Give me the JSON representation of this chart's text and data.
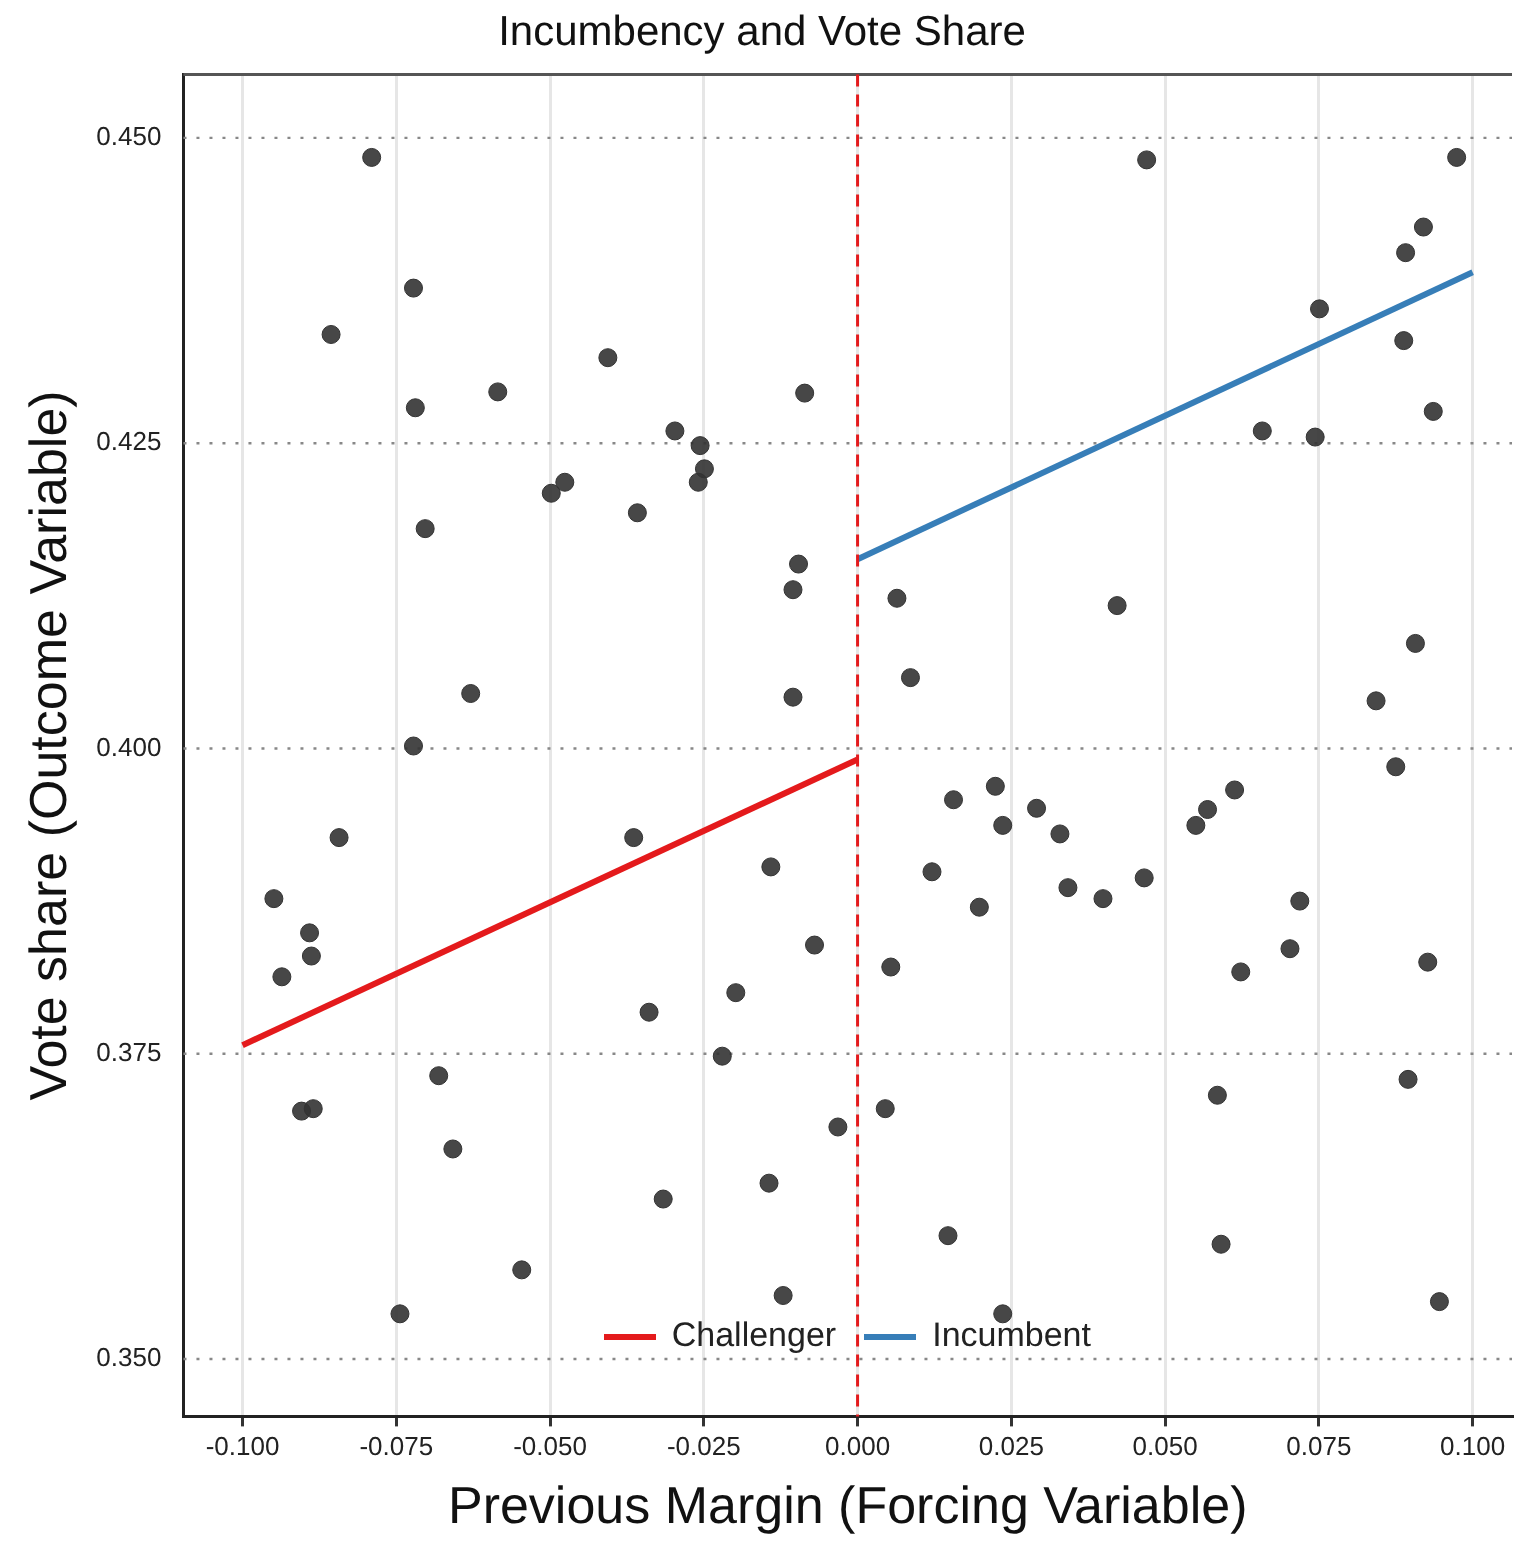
{
  "chart_data": {
    "type": "scatter",
    "title": "Incumbency and Vote Share",
    "xlabel": "Previous Margin (Forcing Variable)",
    "ylabel": "Vote share (Outcome Variable)",
    "xlim": [
      -0.1096,
      0.1064
    ],
    "ylim": [
      0.3453,
      0.4552
    ],
    "xticks": [
      {
        "value": -0.1,
        "label": "-0.100"
      },
      {
        "value": -0.075,
        "label": "-0.075"
      },
      {
        "value": -0.05,
        "label": "-0.050"
      },
      {
        "value": -0.025,
        "label": "-0.025"
      },
      {
        "value": 0,
        "label": "0.000"
      },
      {
        "value": 0.025,
        "label": "0.025"
      },
      {
        "value": 0.05,
        "label": "0.050"
      },
      {
        "value": 0.075,
        "label": "0.075"
      },
      {
        "value": 0.1,
        "label": "0.100"
      }
    ],
    "yticks": [
      {
        "value": 0.35,
        "label": "0.350"
      },
      {
        "value": 0.375,
        "label": "0.375"
      },
      {
        "value": 0.4,
        "label": "0.400"
      },
      {
        "value": 0.425,
        "label": "0.425"
      },
      {
        "value": 0.45,
        "label": "0.450"
      }
    ],
    "grid": true,
    "legend": "bottom",
    "marker": "circle",
    "ref_lines": [
      {
        "axis": "x",
        "value": 0,
        "color": "#e41a1c",
        "line_style": "dashed"
      }
    ],
    "series": [
      {
        "color": "#333333",
        "x": [
          -0.079,
          -0.0856,
          -0.0722,
          -0.0719,
          -0.0703,
          -0.0585,
          -0.0406,
          -0.0297,
          -0.0256,
          -0.0249,
          -0.0259,
          -0.0358,
          -0.0498,
          -0.0476,
          -0.0086,
          -0.0096,
          -0.0105,
          -0.0105,
          -0.0629,
          -0.0722,
          -0.0949,
          -0.0936,
          -0.0891,
          -0.0888,
          -0.0843,
          -0.0904,
          -0.0885,
          -0.0681,
          -0.0658,
          -0.0744,
          -0.0546,
          -0.0364,
          -0.0339,
          -0.0316,
          -0.022,
          -0.0198,
          -0.0141,
          -0.0144,
          -0.0121,
          -0.007,
          -0.0032,
          0.047,
          0.0974,
          0.092,
          0.0891,
          0.0751,
          0.0888,
          0.0936,
          0.0658,
          0.0744,
          0.0064,
          0.0422,
          0.0086,
          0.0907,
          0.0843,
          0.0875,
          0.0156,
          0.0224,
          0.0236,
          0.0291,
          0.0329,
          0.0121,
          0.0198,
          0.0342,
          0.0399,
          0.0466,
          0.055,
          0.0569,
          0.0613,
          0.0719,
          0.0703,
          0.0623,
          0.0927,
          0.0054,
          0.0045,
          0.0585,
          0.0895,
          0.0147,
          0.0591,
          0.0236,
          0.0946
        ],
        "values": [
          0.4484,
          0.4339,
          0.4377,
          0.4279,
          0.418,
          0.4292,
          0.432,
          0.426,
          0.4248,
          0.4229,
          0.4218,
          0.4193,
          0.4209,
          0.4218,
          0.4291,
          0.4151,
          0.413,
          0.4042,
          0.4045,
          0.4002,
          0.3877,
          0.3813,
          0.3849,
          0.383,
          0.3927,
          0.3703,
          0.3705,
          0.3732,
          0.3672,
          0.3537,
          0.3573,
          0.3927,
          0.3784,
          0.3631,
          0.3748,
          0.38,
          0.3903,
          0.3644,
          0.3552,
          0.3839,
          0.369,
          0.4482,
          0.4484,
          0.4427,
          0.4406,
          0.436,
          0.4334,
          0.4276,
          0.426,
          0.4255,
          0.4123,
          0.4117,
          0.4058,
          0.4086,
          0.4039,
          0.3985,
          0.3958,
          0.3969,
          0.3937,
          0.3951,
          0.393,
          0.3899,
          0.387,
          0.3886,
          0.3877,
          0.3894,
          0.3937,
          0.395,
          0.3966,
          0.3875,
          0.3836,
          0.3817,
          0.3825,
          0.3821,
          0.3705,
          0.3716,
          0.3729,
          0.3601,
          0.3594,
          0.3537,
          0.3547
        ]
      },
      {
        "type": "line",
        "name": "Challenger",
        "color": "#e41a1c",
        "marker": "none",
        "x": [
          -0.1,
          0
        ],
        "values": [
          0.3757,
          0.3991
        ]
      },
      {
        "type": "line",
        "name": "Incumbent",
        "color": "#377eb8",
        "marker": "none",
        "x": [
          0,
          0.1
        ],
        "values": [
          0.4155,
          0.439
        ]
      }
    ]
  }
}
